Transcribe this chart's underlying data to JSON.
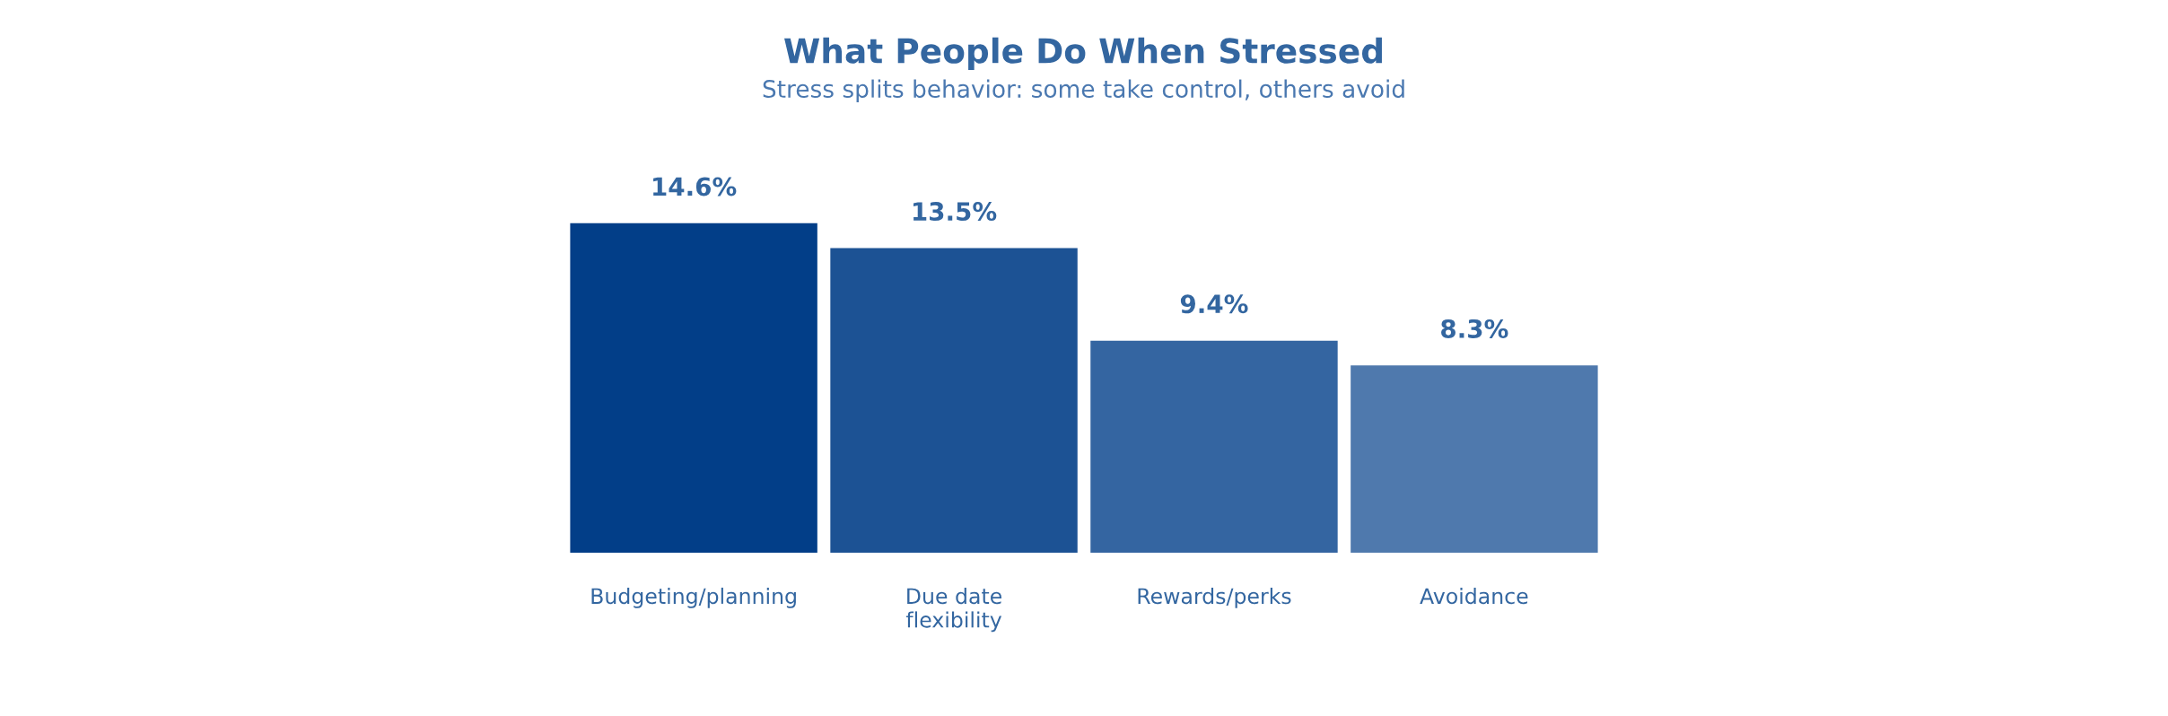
{
  "chart_data": {
    "type": "bar",
    "title": "What People Do When Stressed",
    "subtitle": "Stress splits behavior: some take control, others avoid",
    "categories": [
      "Budgeting/planning",
      "Due date\nflexibility",
      "Rewards/perks",
      "Avoidance"
    ],
    "values": [
      14.6,
      13.5,
      9.4,
      8.3
    ],
    "colors": [
      "#023e88",
      "#1c5294",
      "#3465a1",
      "#4f79ad"
    ],
    "data_labels": true,
    "value_labels": [
      "14.6%",
      "13.5%",
      "9.4%",
      "8.3%"
    ],
    "grid": false,
    "legend": false
  }
}
